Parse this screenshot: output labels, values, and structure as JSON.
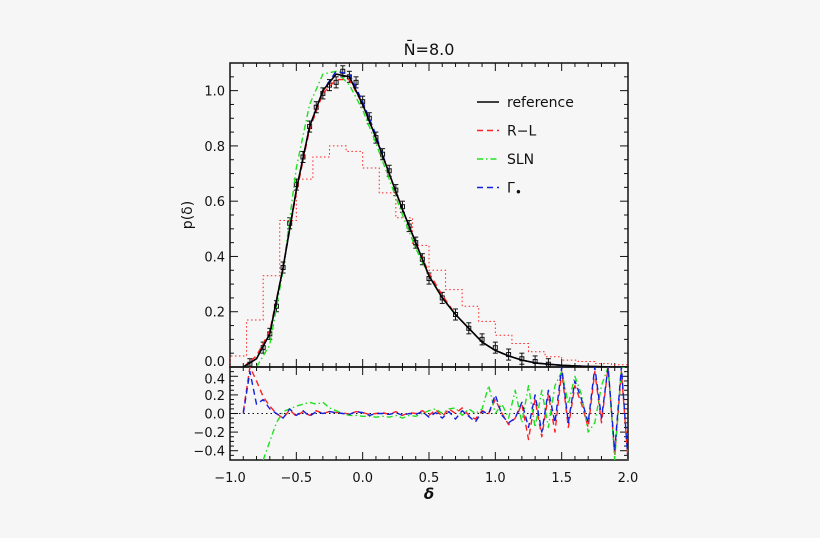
{
  "chart_data": [
    {
      "type": "line",
      "title": "N̄=8.0",
      "xlabel": "δ",
      "ylabel": "p(δ)",
      "xlim": [
        -1.0,
        2.0
      ],
      "ylim": [
        0.0,
        1.1
      ],
      "xticks": [
        "−1.0",
        "−0.5",
        "0.0",
        "0.5",
        "1.0",
        "1.5",
        "2.0"
      ],
      "xtick_values": [
        -1.0,
        -0.5,
        0.0,
        0.5,
        1.0,
        1.5,
        2.0
      ],
      "yticks": [
        "0.0",
        "0.2",
        "0.4",
        "0.6",
        "0.8",
        "1.0"
      ],
      "ytick_values": [
        0.0,
        0.2,
        0.4,
        0.6,
        0.8,
        1.0
      ],
      "grid": false,
      "legend_position": "top-right",
      "x": [
        -0.9,
        -0.8,
        -0.7,
        -0.6,
        -0.5,
        -0.4,
        -0.3,
        -0.2,
        -0.1,
        0.0,
        0.1,
        0.2,
        0.3,
        0.4,
        0.5,
        0.6,
        0.7,
        0.8,
        0.9,
        1.0,
        1.1,
        1.2,
        1.3,
        1.4,
        1.5,
        1.6,
        1.7,
        1.8,
        1.9,
        2.0
      ],
      "series": [
        {
          "name": "reference",
          "color": "#000000",
          "style": "solid",
          "values": [
            0.0,
            0.03,
            0.12,
            0.36,
            0.64,
            0.87,
            1.0,
            1.06,
            1.05,
            0.95,
            0.83,
            0.7,
            0.57,
            0.45,
            0.33,
            0.25,
            0.19,
            0.14,
            0.09,
            0.06,
            0.04,
            0.025,
            0.015,
            0.01,
            0.006,
            0.004,
            0.002,
            0.001,
            0.0,
            0.0
          ]
        },
        {
          "name": "R−L",
          "color": "#ff2020",
          "style": "dashed",
          "values": [
            0.0,
            0.04,
            0.13,
            0.36,
            0.63,
            0.86,
            0.99,
            1.04,
            1.04,
            0.95,
            0.83,
            0.7,
            0.57,
            0.45,
            0.34,
            0.26,
            0.19,
            0.14,
            0.09,
            0.06,
            0.04,
            0.025,
            0.015,
            0.01,
            0.006,
            0.004,
            0.002,
            0.001,
            0.0,
            0.0
          ]
        },
        {
          "name": "SLN",
          "color": "#20e020",
          "style": "dashdot",
          "values": [
            0.0,
            0.0,
            0.08,
            0.35,
            0.72,
            0.95,
            1.06,
            1.07,
            1.02,
            0.93,
            0.81,
            0.68,
            0.55,
            0.43,
            0.33,
            0.25,
            0.19,
            0.14,
            0.09,
            0.06,
            0.04,
            0.025,
            0.015,
            0.01,
            0.006,
            0.004,
            0.002,
            0.001,
            0.0,
            0.0
          ]
        },
        {
          "name": "Γ",
          "subscript": "•",
          "color": "#1020e0",
          "style": "dashed",
          "values": [
            0.0,
            0.03,
            0.12,
            0.36,
            0.64,
            0.87,
            1.0,
            1.07,
            1.06,
            0.96,
            0.84,
            0.7,
            0.57,
            0.45,
            0.33,
            0.25,
            0.19,
            0.14,
            0.09,
            0.06,
            0.04,
            0.025,
            0.015,
            0.01,
            0.006,
            0.004,
            0.002,
            0.001,
            0.0,
            0.0
          ]
        }
      ],
      "data_points": {
        "x": [
          -0.85,
          -0.75,
          -0.7,
          -0.65,
          -0.6,
          -0.55,
          -0.5,
          -0.45,
          -0.4,
          -0.35,
          -0.3,
          -0.25,
          -0.2,
          -0.15,
          -0.1,
          -0.05,
          0.0,
          0.05,
          0.1,
          0.15,
          0.2,
          0.25,
          0.3,
          0.35,
          0.4,
          0.45,
          0.5,
          0.6,
          0.7,
          0.8,
          0.9,
          1.0,
          1.1,
          1.2,
          1.3,
          1.4
        ],
        "y": [
          0.01,
          0.07,
          0.12,
          0.22,
          0.36,
          0.52,
          0.66,
          0.76,
          0.87,
          0.94,
          0.99,
          1.02,
          1.03,
          1.07,
          1.05,
          1.03,
          0.96,
          0.9,
          0.83,
          0.77,
          0.71,
          0.64,
          0.58,
          0.51,
          0.45,
          0.39,
          0.32,
          0.25,
          0.19,
          0.14,
          0.1,
          0.07,
          0.045,
          0.03,
          0.02,
          0.01
        ],
        "error": 0.02
      },
      "histogram": {
        "color": "#ff2020",
        "style": "dotted",
        "bin_edges_start": -1.0,
        "bin_width": 0.125,
        "values": [
          0.04,
          0.17,
          0.33,
          0.53,
          0.68,
          0.76,
          0.8,
          0.78,
          0.72,
          0.63,
          0.54,
          0.44,
          0.35,
          0.28,
          0.22,
          0.165,
          0.115,
          0.085,
          0.055,
          0.037,
          0.025,
          0.02,
          0.012,
          0.008
        ]
      }
    },
    {
      "type": "line",
      "xlabel": "δ",
      "ylabel": "",
      "xlim": [
        -1.0,
        2.0
      ],
      "ylim": [
        -0.5,
        0.5
      ],
      "yticks": [
        "0.4",
        "0.2",
        "0.0",
        "−0.2",
        "−0.4"
      ],
      "ytick_values": [
        0.4,
        0.2,
        0.0,
        -0.2,
        -0.4
      ],
      "reference_line": 0.0,
      "x": [
        -0.9,
        -0.85,
        -0.8,
        -0.75,
        -0.7,
        -0.65,
        -0.6,
        -0.55,
        -0.5,
        -0.45,
        -0.4,
        -0.35,
        -0.3,
        -0.25,
        -0.2,
        -0.15,
        -0.1,
        -0.05,
        0.0,
        0.05,
        0.1,
        0.15,
        0.2,
        0.25,
        0.3,
        0.35,
        0.4,
        0.45,
        0.5,
        0.55,
        0.6,
        0.65,
        0.7,
        0.75,
        0.8,
        0.85,
        0.9,
        0.95,
        1.0,
        1.05,
        1.1,
        1.15,
        1.2,
        1.25,
        1.3,
        1.35,
        1.4,
        1.45,
        1.5,
        1.55,
        1.6,
        1.65,
        1.7,
        1.75,
        1.8,
        1.85,
        1.9,
        1.95,
        2.0
      ],
      "series": [
        {
          "name": "R−L",
          "color": "#ff2020",
          "style": "dashed",
          "values": [
            0.02,
            0.5,
            0.35,
            0.18,
            0.08,
            0.0,
            -0.05,
            0.04,
            -0.03,
            0.02,
            -0.02,
            0.03,
            0.0,
            0.02,
            0.01,
            0.01,
            -0.01,
            0.02,
            0.01,
            -0.01,
            0.0,
            0.01,
            -0.01,
            0.02,
            -0.02,
            0.01,
            0.0,
            0.03,
            -0.02,
            0.04,
            -0.03,
            0.05,
            0.0,
            0.06,
            -0.02,
            -0.06,
            0.03,
            0.0,
            0.15,
            0.0,
            -0.12,
            -0.05,
            0.1,
            -0.28,
            0.15,
            -0.25,
            0.2,
            -0.2,
            0.45,
            -0.15,
            0.3,
            0.1,
            -0.15,
            0.45,
            -0.1,
            0.5,
            -0.45,
            0.45,
            -0.5
          ]
        },
        {
          "name": "SLN",
          "color": "#20e020",
          "style": "dashdot",
          "values": [
            null,
            null,
            null,
            -0.5,
            -0.3,
            -0.1,
            0.02,
            0.05,
            0.08,
            0.1,
            0.12,
            0.1,
            0.12,
            0.06,
            0.03,
            0.0,
            -0.02,
            -0.02,
            -0.03,
            -0.03,
            -0.04,
            -0.03,
            -0.04,
            -0.02,
            -0.05,
            -0.02,
            -0.03,
            0.0,
            0.03,
            0.05,
            0.0,
            0.05,
            0.06,
            -0.02,
            0.05,
            0.0,
            0.05,
            0.3,
            0.0,
            0.1,
            -0.05,
            0.25,
            -0.1,
            0.3,
            -0.15,
            0.25,
            -0.15,
            0.3,
            0.45,
            0.1,
            0.4,
            0.2,
            -0.2,
            -0.1,
            0.3,
            0.5,
            -0.5,
            0.5,
            0.5
          ]
        },
        {
          "name": "Γ",
          "subscript": "•",
          "color": "#1020e0",
          "style": "dashed",
          "values": [
            0.0,
            0.45,
            0.1,
            0.15,
            0.05,
            0.0,
            -0.05,
            0.05,
            -0.02,
            0.03,
            -0.03,
            0.02,
            0.0,
            0.02,
            0.01,
            0.0,
            -0.01,
            0.02,
            0.01,
            -0.02,
            0.0,
            0.0,
            -0.01,
            0.01,
            -0.02,
            0.0,
            -0.01,
            0.02,
            -0.04,
            0.01,
            -0.05,
            0.02,
            -0.06,
            0.03,
            -0.03,
            -0.09,
            0.02,
            0.0,
            0.2,
            -0.02,
            -0.1,
            -0.05,
            0.12,
            -0.15,
            0.2,
            -0.2,
            0.25,
            -0.1,
            0.5,
            -0.1,
            0.35,
            0.15,
            -0.1,
            0.5,
            -0.05,
            0.5,
            -0.4,
            0.5,
            -0.5
          ]
        }
      ]
    }
  ]
}
